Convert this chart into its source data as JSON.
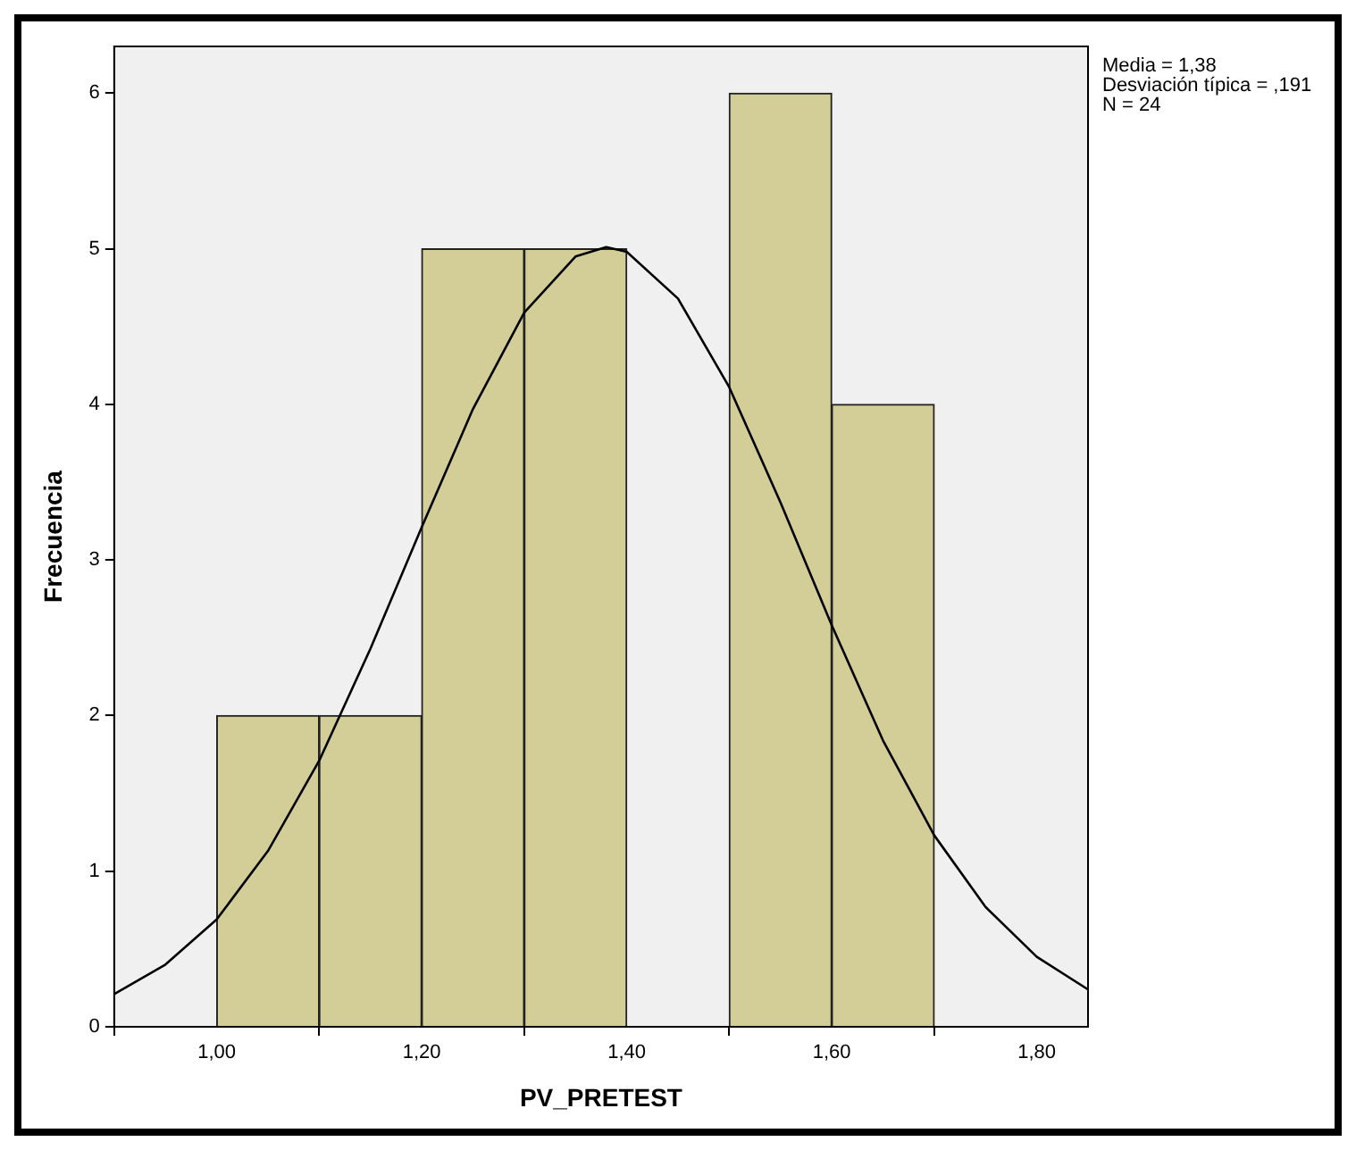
{
  "chart_data": {
    "type": "histogram",
    "xlabel": "PV_PRETEST",
    "ylabel": "Frecuencia",
    "bins": [
      1.0,
      1.1,
      1.2,
      1.3,
      1.4,
      1.5,
      1.6,
      1.7
    ],
    "values": [
      2,
      2,
      5,
      5,
      0,
      6,
      4
    ],
    "color": "#d3ce97",
    "series": [
      {
        "type": "line",
        "color": "#000000",
        "x": [
          0.9,
          0.95,
          1.0,
          1.05,
          1.1,
          1.15,
          1.2,
          1.25,
          1.3,
          1.35,
          1.38,
          1.4,
          1.45,
          1.5,
          1.55,
          1.6,
          1.65,
          1.7,
          1.75,
          1.8,
          1.85
        ],
        "values": [
          0.21,
          0.4,
          0.69,
          1.13,
          1.71,
          2.43,
          3.21,
          3.97,
          4.59,
          4.95,
          5.01,
          4.98,
          4.68,
          4.11,
          3.37,
          2.58,
          1.84,
          1.23,
          0.77,
          0.45,
          0.24
        ]
      }
    ],
    "xlim": [
      0.9,
      1.85
    ],
    "xticks": [
      {
        "value": 1.0,
        "label": "1,00"
      },
      {
        "value": 1.2,
        "label": "1,20"
      },
      {
        "value": 1.4,
        "label": "1,40"
      },
      {
        "value": 1.6,
        "label": "1,60"
      },
      {
        "value": 1.8,
        "label": "1,80"
      }
    ],
    "ylim": [
      0,
      6.3
    ],
    "yticks": [
      0,
      1,
      2,
      3,
      4,
      5,
      6
    ],
    "grid": false,
    "legend": false,
    "marker": "none",
    "annotations": [
      "Media = 1,38",
      "Desviación típica = ,191",
      "N = 24"
    ]
  }
}
